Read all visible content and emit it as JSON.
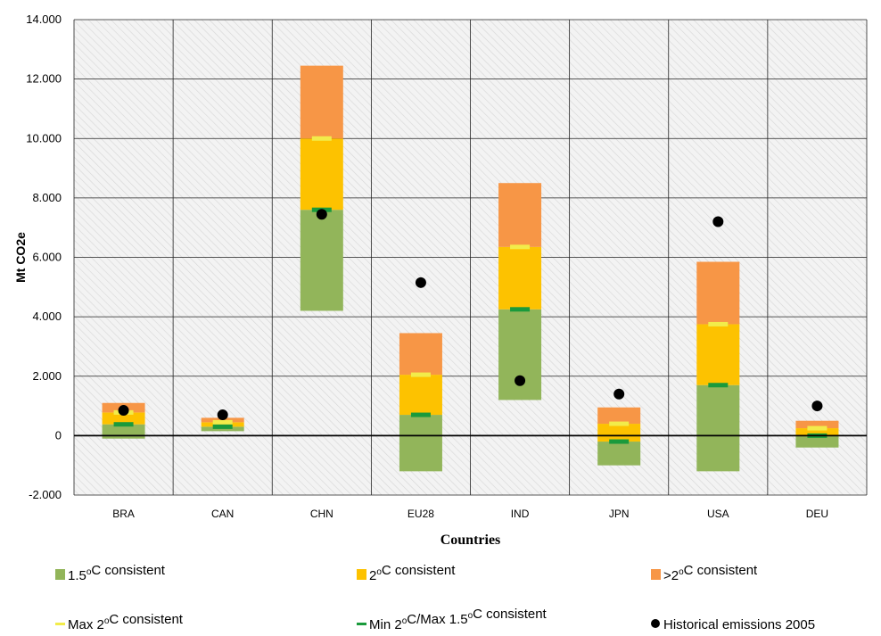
{
  "chart_data": {
    "type": "bar",
    "subtype": "stacked-range",
    "title": "",
    "xlabel": "Countries",
    "ylabel": "Mt CO2e",
    "ylim": [
      -2000,
      14000
    ],
    "yticks": [
      -2000,
      0,
      2000,
      4000,
      6000,
      8000,
      10000,
      12000,
      14000
    ],
    "ytick_labels": [
      "-2.000",
      "0",
      "2.000",
      "4.000",
      "6.000",
      "8.000",
      "10.000",
      "12.000",
      "14.000"
    ],
    "grid": true,
    "legend_position": "bottom",
    "categories": [
      "BRA",
      "CAN",
      "CHN",
      "EU28",
      "IND",
      "JPN",
      "USA",
      "DEU"
    ],
    "series": [
      {
        "name": "1.5°C  consistent",
        "kind": "range",
        "color": "#92b55a",
        "low": [
          -100,
          150,
          4200,
          -1200,
          1200,
          -1000,
          -1200,
          -400
        ],
        "high": [
          380,
          300,
          7600,
          700,
          4250,
          -200,
          1700,
          0
        ]
      },
      {
        "name": "2°C  consistent",
        "kind": "range",
        "color": "#fdc200",
        "low": [
          380,
          300,
          7600,
          700,
          4250,
          -200,
          1700,
          0
        ],
        "high": [
          780,
          450,
          10000,
          2050,
          6350,
          400,
          3750,
          250
        ]
      },
      {
        "name": ">2°C  consistent",
        "kind": "range",
        "color": "#f79646",
        "low": [
          780,
          450,
          10000,
          2050,
          6350,
          400,
          3750,
          250
        ],
        "high": [
          1100,
          600,
          12450,
          3450,
          8500,
          950,
          5850,
          500
        ]
      },
      {
        "name": "Max 2°C consistent",
        "kind": "marker",
        "color": "#f2ec4a",
        "values": [
          780,
          450,
          10000,
          2050,
          6350,
          400,
          3750,
          250
        ]
      },
      {
        "name": "Min 2°C/Max 1.5°C consistent",
        "kind": "marker",
        "color": "#1a9a3c",
        "values": [
          380,
          300,
          7600,
          700,
          4250,
          -200,
          1700,
          0
        ]
      },
      {
        "name": "Historical emissions 2005",
        "kind": "dot",
        "color": "#000000",
        "values": [
          850,
          700,
          7450,
          5150,
          1850,
          1400,
          7200,
          1000
        ]
      }
    ]
  },
  "legend": {
    "items": [
      {
        "label_pre": "1.5",
        "sup": "o",
        "label_post": "C  consistent",
        "color": "#92b55a",
        "kind": "square"
      },
      {
        "label_pre": "2",
        "sup": "o",
        "label_post": "C  consistent",
        "color": "#fdc200",
        "kind": "square"
      },
      {
        "label_pre": ">2",
        "sup": "o",
        "label_post": "C  consistent",
        "color": "#f79646",
        "kind": "square"
      },
      {
        "label_pre": "Max 2",
        "sup": "o",
        "label_post": "C consistent",
        "color": "#f2ec4a",
        "kind": "dash"
      },
      {
        "label_pre": "Min 2",
        "sup": "o",
        "label_post": "C/Max 1.5",
        "sup2": "o",
        "label_post2": "C consistent",
        "color": "#1a9a3c",
        "kind": "dash"
      },
      {
        "label_pre": "Historical emissions 2005",
        "color": "#000000",
        "kind": "dot"
      }
    ]
  }
}
